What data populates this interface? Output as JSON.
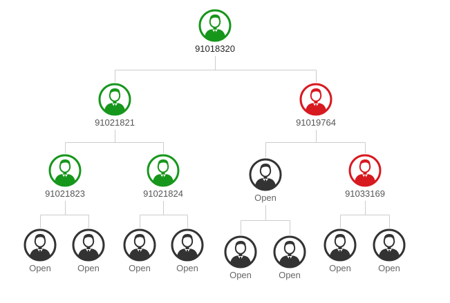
{
  "colors": {
    "green": "#17961c",
    "red": "#d71920",
    "open": "#333333",
    "connector": "#cccccc"
  },
  "icons": {
    "member": "person-avatar-icon"
  },
  "nodes": [
    {
      "label": "91018320",
      "status": "green"
    },
    {
      "label": "91021821",
      "status": "green"
    },
    {
      "label": "91019764",
      "status": "red"
    },
    {
      "label": "91021823",
      "status": "green"
    },
    {
      "label": "91021824",
      "status": "green"
    },
    {
      "label": "Open",
      "status": "open"
    },
    {
      "label": "91033169",
      "status": "red"
    },
    {
      "label": "Open",
      "status": "open"
    },
    {
      "label": "Open",
      "status": "open"
    },
    {
      "label": "Open",
      "status": "open"
    },
    {
      "label": "Open",
      "status": "open"
    },
    {
      "label": "Open",
      "status": "open"
    },
    {
      "label": "Open",
      "status": "open"
    },
    {
      "label": "Open",
      "status": "open"
    },
    {
      "label": "Open",
      "status": "open"
    }
  ],
  "edges": [
    [
      0,
      1
    ],
    [
      0,
      2
    ],
    [
      1,
      3
    ],
    [
      1,
      4
    ],
    [
      2,
      5
    ],
    [
      2,
      6
    ],
    [
      3,
      7
    ],
    [
      3,
      8
    ],
    [
      4,
      9
    ],
    [
      4,
      10
    ],
    [
      5,
      11
    ],
    [
      5,
      12
    ],
    [
      6,
      13
    ],
    [
      6,
      14
    ]
  ]
}
